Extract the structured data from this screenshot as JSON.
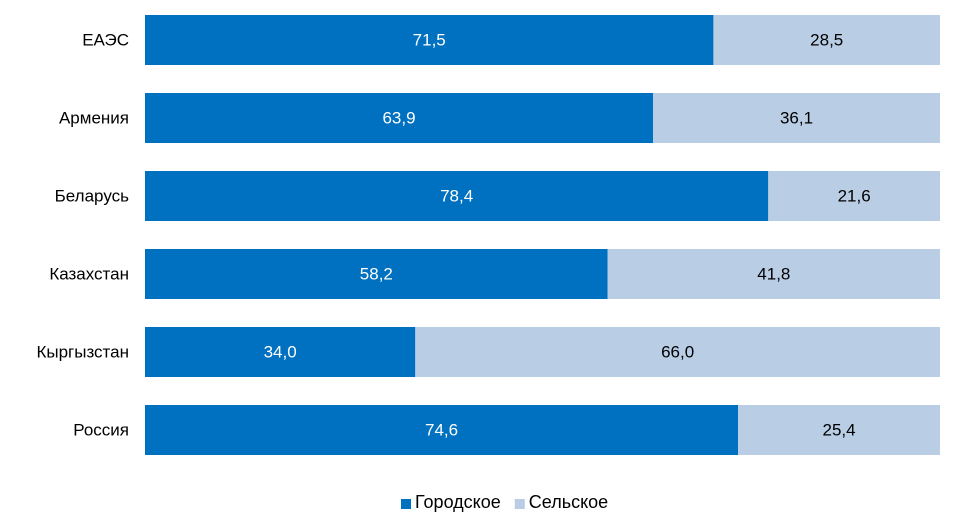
{
  "chart_data": {
    "type": "bar",
    "orientation": "horizontal",
    "stacked": true,
    "categories": [
      "ЕАЭС",
      "Армения",
      "Беларусь",
      "Казахстан",
      "Кыргызстан",
      "Россия"
    ],
    "series": [
      {
        "name": "Городское",
        "values": [
          71.5,
          63.9,
          78.4,
          58.2,
          34.0,
          74.6
        ],
        "labels": [
          "71,5",
          "63,9",
          "78,4",
          "58,2",
          "34,0",
          "74,6"
        ],
        "color": "#0070C0"
      },
      {
        "name": "Сельское",
        "values": [
          28.5,
          36.1,
          21.6,
          41.8,
          66.0,
          25.4
        ],
        "labels": [
          "28,5",
          "36,1",
          "21,6",
          "41,8",
          "66,0",
          "25,4"
        ],
        "color": "#B9CDE5"
      }
    ],
    "xlim": [
      0,
      100
    ],
    "grid": false,
    "legend_position": "bottom-center"
  }
}
